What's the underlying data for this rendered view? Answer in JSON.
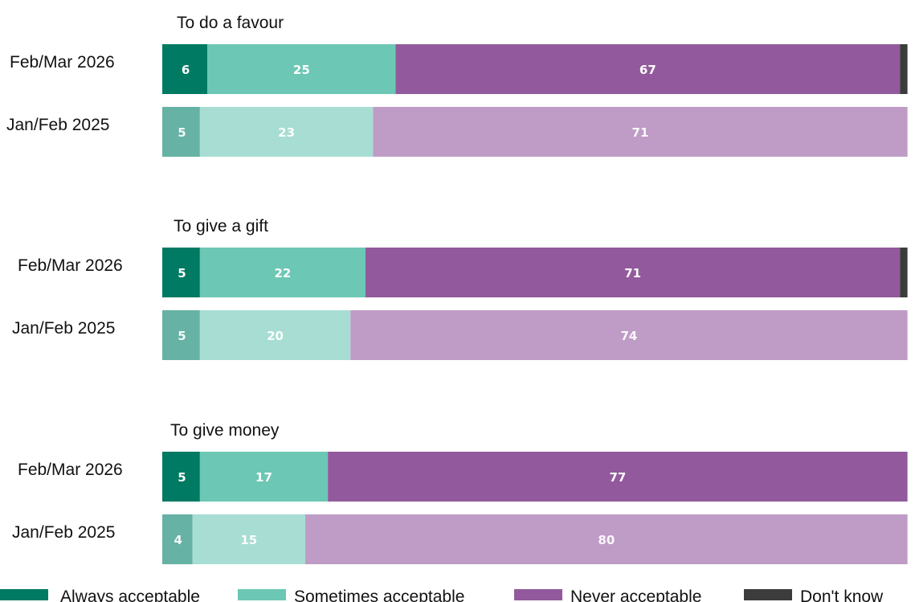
{
  "chart_data": {
    "type": "bar",
    "orientation": "horizontal",
    "stacked": true,
    "legend_position": "bottom",
    "grid": false,
    "xlim": [
      0,
      100
    ],
    "series": [
      {
        "name": "Always acceptable",
        "color_current": "#007a63",
        "color_previous": "#66b2a4"
      },
      {
        "name": "Sometimes acceptable",
        "color_current": "#6cc7b4",
        "color_previous": "#a8ddd3"
      },
      {
        "name": "Never acceptable",
        "color_current": "#925a9c",
        "color_previous": "#be9cc5"
      },
      {
        "name": "Don't know",
        "color_current": "#3c3c3c",
        "color_previous": "#3c3c3c"
      }
    ],
    "groups": [
      {
        "title": "To do a favour",
        "rows": [
          {
            "label": "Feb/Mar 2026",
            "period": "current",
            "values": [
              6,
              25,
              67,
              1
            ]
          },
          {
            "label": "Jan/Feb 2025",
            "period": "previous",
            "values": [
              5,
              23,
              71,
              0
            ]
          }
        ]
      },
      {
        "title": "To give a gift",
        "rows": [
          {
            "label": "Feb/Mar 2026",
            "period": "current",
            "values": [
              5,
              22,
              71,
              1
            ]
          },
          {
            "label": "Jan/Feb 2025",
            "period": "previous",
            "values": [
              5,
              20,
              74,
              0
            ]
          }
        ]
      },
      {
        "title": "To give money",
        "rows": [
          {
            "label": "Feb/Mar 2026",
            "period": "current",
            "values": [
              5,
              17,
              77,
              0
            ]
          },
          {
            "label": "Jan/Feb 2025",
            "period": "previous",
            "values": [
              4,
              15,
              80,
              0
            ]
          }
        ]
      }
    ]
  }
}
